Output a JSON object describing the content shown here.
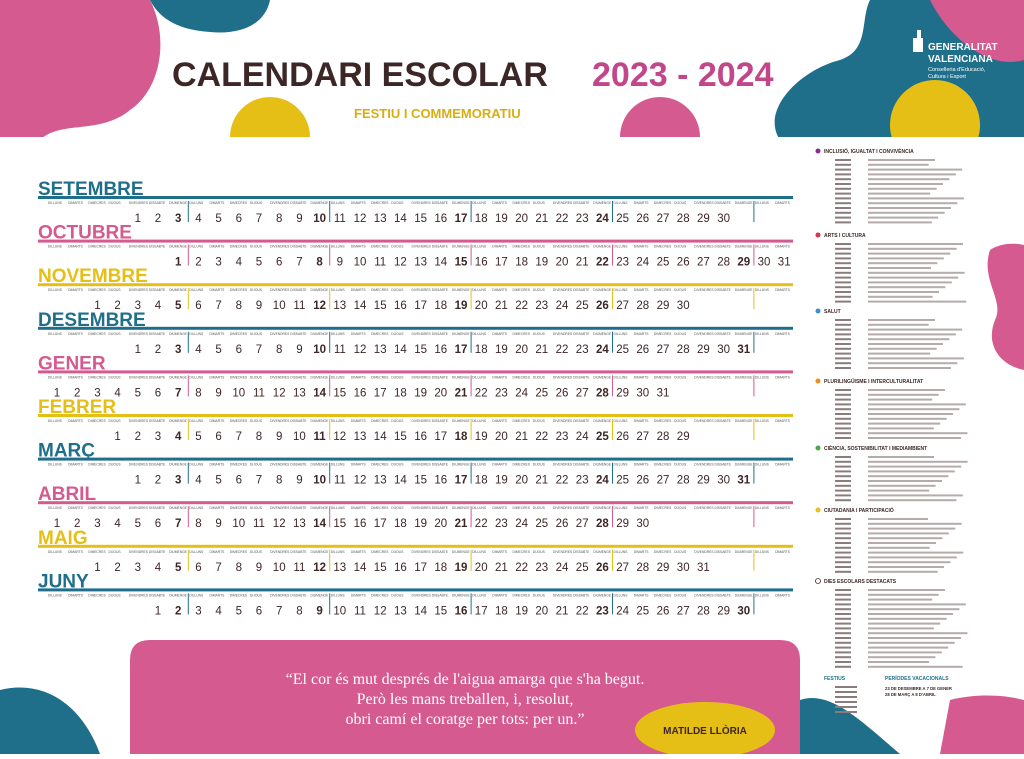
{
  "header": {
    "title": "CALENDARI ESCOLAR",
    "years": "2023 - 2024",
    "subtitle": "FESTIU I COMMEMORATIU",
    "logo": [
      "GENERALITAT",
      "VALENCIANA"
    ],
    "logo_sub": [
      "Conselleria d'Educació,",
      "Cultura i Esport"
    ]
  },
  "weekdays": [
    "DILLUNS",
    "DIMARTS",
    "DIMECRES",
    "DIJOUS",
    "DIVENDRES",
    "DISSABTE",
    "DIUMENGE"
  ],
  "months": [
    {
      "name": "SETEMBRE",
      "color": "#1f6f8b",
      "days": [
        null,
        null,
        null,
        null,
        1,
        2,
        3,
        4,
        5,
        6,
        7,
        8,
        9,
        10,
        11,
        12,
        13,
        14,
        15,
        16,
        17,
        18,
        19,
        20,
        21,
        22,
        23,
        24,
        25,
        26,
        27,
        28,
        29,
        30
      ]
    },
    {
      "name": "OCTUBRE",
      "color": "#d45a8f",
      "days": [
        null,
        null,
        null,
        null,
        null,
        null,
        1,
        2,
        3,
        4,
        5,
        6,
        7,
        8,
        9,
        10,
        11,
        12,
        13,
        14,
        15,
        16,
        17,
        18,
        19,
        20,
        21,
        22,
        23,
        24,
        25,
        26,
        27,
        28,
        29,
        30,
        31
      ]
    },
    {
      "name": "NOVEMBRE",
      "color": "#e6bf16",
      "days": [
        null,
        null,
        1,
        2,
        3,
        4,
        5,
        6,
        7,
        8,
        9,
        10,
        11,
        12,
        13,
        14,
        15,
        16,
        17,
        18,
        19,
        20,
        21,
        22,
        23,
        24,
        25,
        26,
        27,
        28,
        29,
        30
      ]
    },
    {
      "name": "DESEMBRE",
      "color": "#1f6f8b",
      "days": [
        null,
        null,
        null,
        null,
        1,
        2,
        3,
        4,
        5,
        6,
        7,
        8,
        9,
        10,
        11,
        12,
        13,
        14,
        15,
        16,
        17,
        18,
        19,
        20,
        21,
        22,
        23,
        24,
        25,
        26,
        27,
        28,
        29,
        30,
        31
      ]
    },
    {
      "name": "GENER",
      "color": "#d45a8f",
      "days": [
        1,
        2,
        3,
        4,
        5,
        6,
        7,
        8,
        9,
        10,
        11,
        12,
        13,
        14,
        15,
        16,
        17,
        18,
        19,
        20,
        21,
        22,
        23,
        24,
        25,
        26,
        27,
        28,
        29,
        30,
        31
      ]
    },
    {
      "name": "FEBRER",
      "color": "#e6bf16",
      "days": [
        null,
        null,
        null,
        1,
        2,
        3,
        4,
        5,
        6,
        7,
        8,
        9,
        10,
        11,
        12,
        13,
        14,
        15,
        16,
        17,
        18,
        19,
        20,
        21,
        22,
        23,
        24,
        25,
        26,
        27,
        28,
        29
      ]
    },
    {
      "name": "MARÇ",
      "color": "#1f6f8b",
      "days": [
        null,
        null,
        null,
        null,
        1,
        2,
        3,
        4,
        5,
        6,
        7,
        8,
        9,
        10,
        11,
        12,
        13,
        14,
        15,
        16,
        17,
        18,
        19,
        20,
        21,
        22,
        23,
        24,
        25,
        26,
        27,
        28,
        29,
        30,
        31
      ]
    },
    {
      "name": "ABRIL",
      "color": "#d45a8f",
      "days": [
        1,
        2,
        3,
        4,
        5,
        6,
        7,
        8,
        9,
        10,
        11,
        12,
        13,
        14,
        15,
        16,
        17,
        18,
        19,
        20,
        21,
        22,
        23,
        24,
        25,
        26,
        27,
        28,
        29,
        30
      ]
    },
    {
      "name": "MAIG",
      "color": "#e6bf16",
      "days": [
        null,
        null,
        1,
        2,
        3,
        4,
        5,
        6,
        7,
        8,
        9,
        10,
        11,
        12,
        13,
        14,
        15,
        16,
        17,
        18,
        19,
        20,
        21,
        22,
        23,
        24,
        25,
        26,
        27,
        28,
        29,
        30,
        31
      ]
    },
    {
      "name": "JUNY",
      "color": "#1f6f8b",
      "days": [
        null,
        null,
        null,
        null,
        null,
        1,
        2,
        3,
        4,
        5,
        6,
        7,
        8,
        9,
        10,
        11,
        12,
        13,
        14,
        15,
        16,
        17,
        18,
        19,
        20,
        21,
        22,
        23,
        24,
        25,
        26,
        27,
        28,
        29,
        30
      ]
    }
  ],
  "legend": {
    "sections": [
      {
        "title": "INCLUSIÓ, IGUALTAT I CONVIVÈNCIA",
        "color": "#8b2c8c"
      },
      {
        "title": "ARTS I CULTURA",
        "color": "#d2354f"
      },
      {
        "title": "SALUT",
        "color": "#3b8fd0"
      },
      {
        "title": "PLURILINGÜISME I INTERCULTURALITAT",
        "color": "#ef8a1e"
      },
      {
        "title": "CIÈNCIA, SOSTENIBILITAT I MEDIAMBIENT",
        "color": "#4aa84a"
      },
      {
        "title": "CIUTADANIA I PARTICIPACIÓ",
        "color": "#e6c21a"
      },
      {
        "title": "DIES ESCOLARS DESTACATS",
        "color": "#ffffff"
      }
    ],
    "festius": "FESTIUS",
    "vacations": {
      "title": "PERÍODES VACACIONALS",
      "periods": [
        "23 DE DESEMBRE A 7 DE GENER",
        "28 DE MARÇ A 8 D'ABRIL"
      ]
    }
  },
  "quote": {
    "lines": [
      "“El cor és mut després de l'aigua amarga que s'ha begut.",
      "Però les mans treballen, i, resolut,",
      "obri camí el coratge per tots: per un.”"
    ],
    "author": "MATILDE LLÒRIA"
  }
}
